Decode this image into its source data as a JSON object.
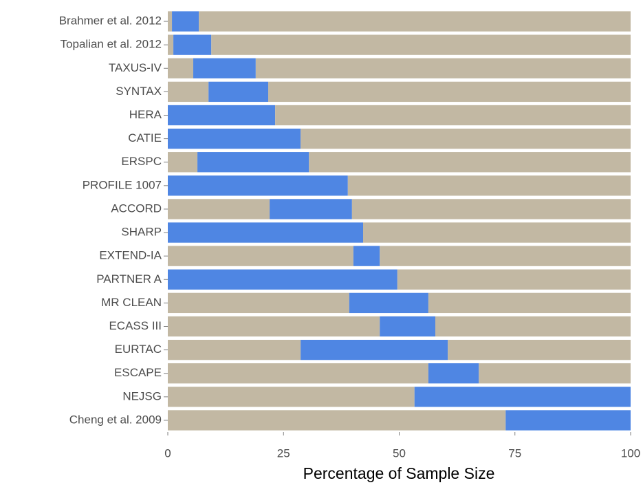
{
  "chart_data": {
    "type": "stacked-bar",
    "orientation": "horizontal",
    "x_label": "Percentage of Sample Size",
    "categories": [
      "Brahmer et al. 2012",
      "Topalian et al. 2012",
      "TAXUS-IV",
      "SYNTAX",
      "HERA",
      "CATIE",
      "ERSPC",
      "PROFILE 1007",
      "ACCORD",
      "SHARP",
      "EXTEND-IA",
      "PARTNER A",
      "MR CLEAN",
      "ECASS III",
      "EURTAC",
      "ESCAPE",
      "NEJSG",
      "Cheng et al. 2009"
    ],
    "series": [
      {
        "color": "#c2b8a3",
        "values": [
          0.9,
          1.2,
          5.5,
          8.8,
          0,
          0,
          6.4,
          0,
          22.0,
          0,
          40.1,
          0,
          39.2,
          45.8,
          28.7,
          56.3,
          53.3,
          73.0
        ]
      },
      {
        "color": "#4f86e3",
        "values": [
          5.8,
          8.2,
          13.5,
          12.9,
          23.2,
          28.7,
          24.1,
          38.9,
          17.8,
          42.2,
          5.7,
          49.6,
          17.1,
          12.0,
          31.8,
          10.9,
          46.7,
          27.0
        ]
      },
      {
        "color": "#c2b8a3",
        "values": [
          93.3,
          90.6,
          81.0,
          78.3,
          76.8,
          71.3,
          69.5,
          61.1,
          60.2,
          57.8,
          54.2,
          50.4,
          43.7,
          42.2,
          39.5,
          32.8,
          0,
          0
        ]
      }
    ],
    "xlim": [
      0,
      100
    ],
    "xticks": [
      0,
      25,
      50,
      75,
      100
    ]
  }
}
